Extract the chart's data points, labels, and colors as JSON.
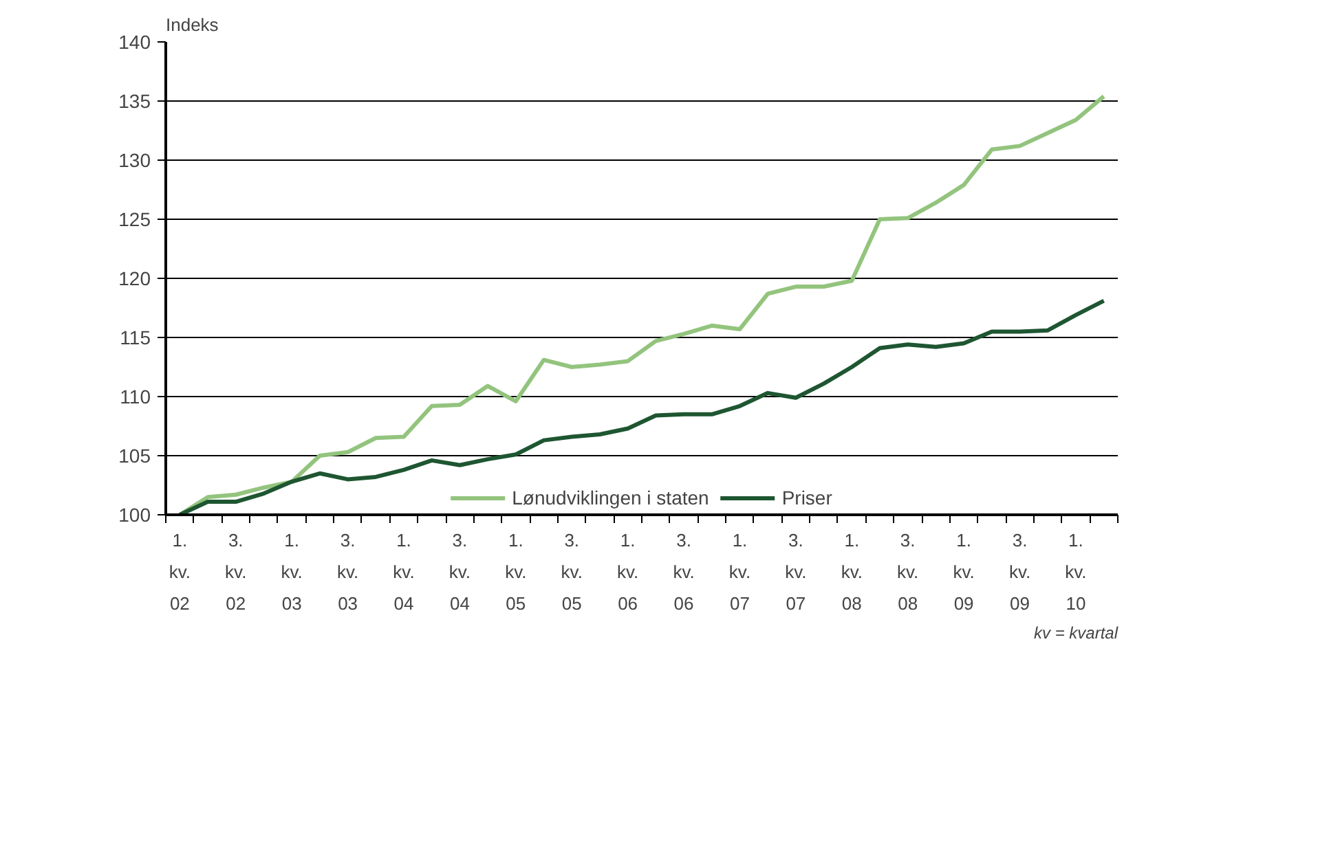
{
  "chart_data": {
    "type": "line",
    "ylabel": "Indeks",
    "categories": [
      "1.\nkv.\n02",
      null,
      "3.\nkv.\n02",
      null,
      "1.\nkv.\n03",
      null,
      "3.\nkv.\n03",
      null,
      "1.\nkv.\n04",
      null,
      "3.\nkv.\n04",
      null,
      "1.\nkv.\n05",
      null,
      "3.\nkv.\n05",
      null,
      "1.\nkv.\n06",
      null,
      "3.\nkv.\n06",
      null,
      "1.\nkv.\n07",
      null,
      "3.\nkv.\n07",
      null,
      "1.\nkv.\n08",
      null,
      "3.\nkv.\n08",
      null,
      "1.\nkv.\n09",
      null,
      "3.\nkv.\n09",
      null,
      "1.\nkv.\n10",
      null
    ],
    "series": [
      {
        "name": "Lønudviklingen i staten",
        "color": "#93c47d",
        "values": [
          100,
          101.5,
          101.7,
          102.3,
          102.8,
          105.0,
          105.3,
          106.5,
          106.6,
          109.2,
          109.3,
          110.9,
          109.6,
          113.1,
          112.5,
          112.7,
          113.0,
          114.7,
          115.3,
          116.0,
          115.7,
          118.7,
          119.3,
          119.3,
          119.8,
          125.0,
          125.1,
          126.4,
          127.9,
          130.9,
          131.2,
          132.3,
          133.4,
          135.4
        ]
      },
      {
        "name": "Priser",
        "color": "#1e5631",
        "values": [
          100,
          101.1,
          101.1,
          101.8,
          102.8,
          103.5,
          103.0,
          103.2,
          103.8,
          104.6,
          104.2,
          104.7,
          105.1,
          106.3,
          106.6,
          106.8,
          107.3,
          108.4,
          108.5,
          108.5,
          109.2,
          110.3,
          109.9,
          111.1,
          112.5,
          114.1,
          114.4,
          114.2,
          114.5,
          115.5,
          115.5,
          115.6,
          116.9,
          118.1
        ]
      }
    ],
    "ylim": [
      100,
      140
    ],
    "yticks": [
      100,
      105,
      110,
      115,
      120,
      125,
      130,
      135,
      140
    ],
    "grid": "y",
    "legend": "bottom",
    "marker": "none",
    "line_style": "solid",
    "annotations": [
      "kv = kvartal"
    ]
  }
}
